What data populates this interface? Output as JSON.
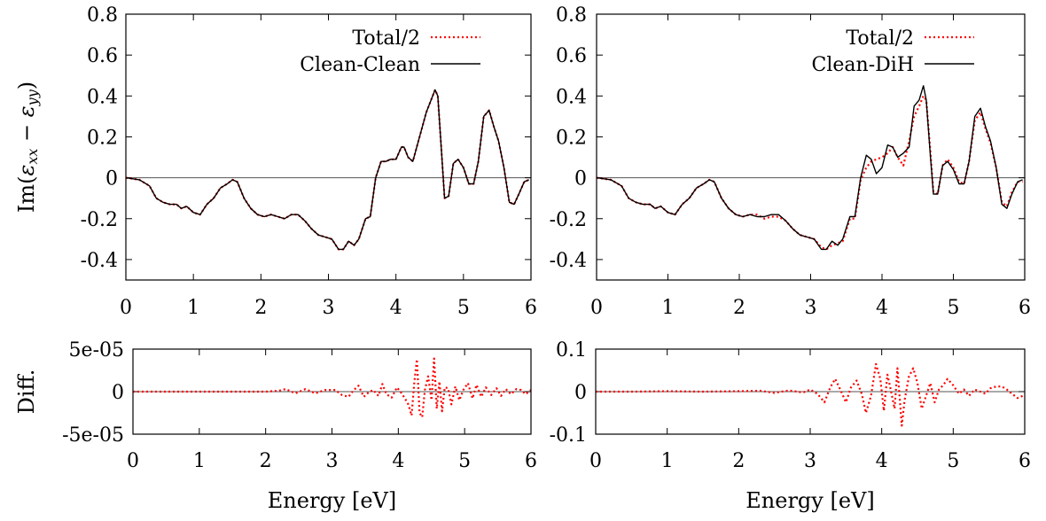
{
  "chart_data": [
    {
      "type": "line",
      "panel": "top-left",
      "xlim": [
        0,
        6
      ],
      "ylim": [
        -0.5,
        0.8
      ],
      "xticks": [
        0,
        1,
        2,
        3,
        4,
        5,
        6
      ],
      "yticks": [
        -0.4,
        -0.2,
        0,
        0.2,
        0.4,
        0.6,
        0.8
      ],
      "ytick_labels": [
        "-0.4",
        "-0.2",
        "0",
        "0.2",
        "0.4",
        "0.6",
        "0.8"
      ],
      "ylabel": "Im(ε_xx − ε_yy)",
      "xlabel": "",
      "legend": "top-right",
      "zero_line": true,
      "series": [
        {
          "name": "Total/2",
          "style": "dotted",
          "color": "#ff0000",
          "x": [
            0,
            0.2,
            0.35,
            0.45,
            0.55,
            0.65,
            0.75,
            0.82,
            0.9,
            1.0,
            1.1,
            1.2,
            1.3,
            1.4,
            1.5,
            1.58,
            1.65,
            1.75,
            1.85,
            1.95,
            2.05,
            2.15,
            2.25,
            2.35,
            2.45,
            2.55,
            2.65,
            2.75,
            2.85,
            2.95,
            3.05,
            3.15,
            3.22,
            3.3,
            3.38,
            3.45,
            3.55,
            3.62,
            3.7,
            3.78,
            3.85,
            3.92,
            4.0,
            4.08,
            4.12,
            4.18,
            4.25,
            4.35,
            4.45,
            4.52,
            4.58,
            4.62,
            4.68,
            4.72,
            4.78,
            4.85,
            4.92,
            5.0,
            5.08,
            5.15,
            5.22,
            5.3,
            5.38,
            5.45,
            5.52,
            5.6,
            5.68,
            5.75,
            5.82,
            5.9,
            5.97
          ],
          "y": [
            0,
            -0.01,
            -0.04,
            -0.1,
            -0.12,
            -0.13,
            -0.13,
            -0.15,
            -0.14,
            -0.17,
            -0.18,
            -0.13,
            -0.1,
            -0.05,
            -0.03,
            -0.01,
            -0.02,
            -0.1,
            -0.15,
            -0.18,
            -0.19,
            -0.18,
            -0.19,
            -0.2,
            -0.18,
            -0.18,
            -0.21,
            -0.25,
            -0.28,
            -0.29,
            -0.3,
            -0.35,
            -0.35,
            -0.31,
            -0.33,
            -0.3,
            -0.2,
            -0.19,
            0.0,
            0.08,
            0.08,
            0.09,
            0.09,
            0.15,
            0.15,
            0.1,
            0.08,
            0.2,
            0.32,
            0.38,
            0.43,
            0.4,
            0.1,
            -0.1,
            -0.09,
            0.07,
            0.09,
            0.05,
            -0.03,
            -0.03,
            0.08,
            0.3,
            0.33,
            0.25,
            0.18,
            0.05,
            -0.12,
            -0.13,
            -0.08,
            -0.02,
            -0.01
          ]
        },
        {
          "name": "Clean-Clean",
          "style": "solid",
          "color": "#000000",
          "x": [
            0,
            0.2,
            0.35,
            0.45,
            0.55,
            0.65,
            0.75,
            0.82,
            0.9,
            1.0,
            1.1,
            1.2,
            1.3,
            1.4,
            1.5,
            1.58,
            1.65,
            1.75,
            1.85,
            1.95,
            2.05,
            2.15,
            2.25,
            2.35,
            2.45,
            2.55,
            2.65,
            2.75,
            2.85,
            2.95,
            3.05,
            3.15,
            3.22,
            3.3,
            3.38,
            3.45,
            3.55,
            3.62,
            3.7,
            3.78,
            3.85,
            3.92,
            4.0,
            4.08,
            4.12,
            4.18,
            4.25,
            4.35,
            4.45,
            4.52,
            4.58,
            4.62,
            4.68,
            4.72,
            4.78,
            4.85,
            4.92,
            5.0,
            5.08,
            5.15,
            5.22,
            5.3,
            5.38,
            5.45,
            5.52,
            5.6,
            5.68,
            5.75,
            5.82,
            5.9,
            5.97
          ],
          "y": [
            0,
            -0.01,
            -0.04,
            -0.1,
            -0.12,
            -0.13,
            -0.13,
            -0.15,
            -0.14,
            -0.17,
            -0.18,
            -0.13,
            -0.1,
            -0.05,
            -0.03,
            -0.01,
            -0.02,
            -0.1,
            -0.15,
            -0.18,
            -0.19,
            -0.18,
            -0.19,
            -0.2,
            -0.18,
            -0.18,
            -0.21,
            -0.25,
            -0.28,
            -0.29,
            -0.3,
            -0.35,
            -0.35,
            -0.31,
            -0.33,
            -0.3,
            -0.2,
            -0.19,
            0.0,
            0.08,
            0.08,
            0.09,
            0.09,
            0.15,
            0.15,
            0.1,
            0.08,
            0.2,
            0.32,
            0.38,
            0.43,
            0.4,
            0.1,
            -0.1,
            -0.09,
            0.07,
            0.09,
            0.05,
            -0.03,
            -0.03,
            0.08,
            0.3,
            0.33,
            0.25,
            0.18,
            0.05,
            -0.12,
            -0.13,
            -0.08,
            -0.02,
            -0.01
          ]
        }
      ]
    },
    {
      "type": "line",
      "panel": "top-right",
      "xlim": [
        0,
        6
      ],
      "ylim": [
        -0.5,
        0.8
      ],
      "xticks": [
        0,
        1,
        2,
        3,
        4,
        5,
        6
      ],
      "yticks": [
        -0.4,
        -0.2,
        0,
        0.2,
        0.4,
        0.6,
        0.8
      ],
      "ytick_labels": [
        "-0.4",
        "-0.2",
        "0",
        "0.2",
        "0.4",
        "0.6",
        "0.8"
      ],
      "xlabel": "",
      "ylabel": "",
      "legend": "top-right",
      "zero_line": true,
      "series": [
        {
          "name": "Total/2",
          "style": "dotted",
          "color": "#ff0000",
          "x": [
            0,
            0.2,
            0.35,
            0.45,
            0.55,
            0.65,
            0.75,
            0.82,
            0.9,
            1.0,
            1.1,
            1.2,
            1.3,
            1.4,
            1.5,
            1.58,
            1.65,
            1.75,
            1.85,
            1.95,
            2.05,
            2.15,
            2.25,
            2.35,
            2.45,
            2.55,
            2.65,
            2.75,
            2.85,
            2.95,
            3.05,
            3.15,
            3.22,
            3.3,
            3.38,
            3.45,
            3.55,
            3.62,
            3.7,
            3.78,
            3.85,
            3.92,
            4.0,
            4.08,
            4.15,
            4.22,
            4.3,
            4.38,
            4.45,
            4.52,
            4.58,
            4.62,
            4.68,
            4.72,
            4.78,
            4.85,
            4.92,
            5.0,
            5.08,
            5.15,
            5.22,
            5.3,
            5.38,
            5.45,
            5.52,
            5.6,
            5.68,
            5.75,
            5.82,
            5.9,
            5.97
          ],
          "y": [
            0,
            -0.01,
            -0.04,
            -0.1,
            -0.12,
            -0.13,
            -0.13,
            -0.15,
            -0.14,
            -0.17,
            -0.18,
            -0.13,
            -0.1,
            -0.05,
            -0.03,
            -0.01,
            -0.02,
            -0.1,
            -0.15,
            -0.18,
            -0.19,
            -0.18,
            -0.18,
            -0.2,
            -0.19,
            -0.19,
            -0.21,
            -0.25,
            -0.28,
            -0.29,
            -0.3,
            -0.34,
            -0.35,
            -0.33,
            -0.32,
            -0.31,
            -0.2,
            -0.2,
            -0.01,
            0.05,
            0.08,
            0.09,
            0.1,
            0.12,
            0.15,
            0.1,
            0.06,
            0.18,
            0.3,
            0.35,
            0.4,
            0.38,
            0.12,
            -0.07,
            -0.08,
            0.06,
            0.09,
            0.05,
            -0.02,
            -0.03,
            0.08,
            0.28,
            0.32,
            0.24,
            0.17,
            0.05,
            -0.12,
            -0.14,
            -0.07,
            -0.02,
            -0.02
          ]
        },
        {
          "name": "Clean-DiH",
          "style": "solid",
          "color": "#000000",
          "x": [
            0,
            0.2,
            0.35,
            0.45,
            0.55,
            0.65,
            0.75,
            0.82,
            0.9,
            1.0,
            1.1,
            1.2,
            1.3,
            1.4,
            1.5,
            1.58,
            1.65,
            1.75,
            1.85,
            1.95,
            2.05,
            2.15,
            2.25,
            2.35,
            2.45,
            2.55,
            2.65,
            2.75,
            2.85,
            2.95,
            3.05,
            3.15,
            3.22,
            3.3,
            3.38,
            3.45,
            3.55,
            3.62,
            3.7,
            3.78,
            3.85,
            3.92,
            4.0,
            4.08,
            4.15,
            4.22,
            4.3,
            4.38,
            4.45,
            4.52,
            4.58,
            4.62,
            4.68,
            4.72,
            4.78,
            4.85,
            4.92,
            5.0,
            5.08,
            5.15,
            5.22,
            5.3,
            5.38,
            5.45,
            5.52,
            5.6,
            5.68,
            5.75,
            5.82,
            5.9,
            5.97
          ],
          "y": [
            0,
            -0.01,
            -0.04,
            -0.1,
            -0.12,
            -0.13,
            -0.13,
            -0.15,
            -0.14,
            -0.17,
            -0.18,
            -0.13,
            -0.1,
            -0.05,
            -0.03,
            -0.01,
            -0.02,
            -0.1,
            -0.15,
            -0.18,
            -0.19,
            -0.18,
            -0.19,
            -0.19,
            -0.18,
            -0.18,
            -0.21,
            -0.25,
            -0.28,
            -0.29,
            -0.3,
            -0.35,
            -0.35,
            -0.31,
            -0.33,
            -0.3,
            -0.19,
            -0.19,
            0.0,
            0.11,
            0.09,
            0.02,
            0.05,
            0.16,
            0.15,
            0.1,
            0.12,
            0.15,
            0.35,
            0.38,
            0.45,
            0.38,
            0.1,
            -0.08,
            -0.08,
            0.06,
            0.08,
            0.04,
            -0.03,
            -0.03,
            0.08,
            0.3,
            0.34,
            0.25,
            0.18,
            0.05,
            -0.13,
            -0.15,
            -0.08,
            -0.02,
            -0.01
          ]
        }
      ]
    },
    {
      "type": "line",
      "panel": "bottom-left",
      "xlim": [
        0,
        6
      ],
      "ylim": [
        -5e-05,
        5e-05
      ],
      "xticks": [
        0,
        1,
        2,
        3,
        4,
        5,
        6
      ],
      "yticks": [
        -5e-05,
        0,
        5e-05
      ],
      "ytick_labels": [
        "-5e-05",
        "0",
        "5e-05"
      ],
      "ylabel": "Diff.",
      "xlabel": "Energy [eV]",
      "zero_line": true,
      "series": [
        {
          "name": "",
          "style": "dotted",
          "color": "#ff0000",
          "x": [
            0,
            0.5,
            1.0,
            1.5,
            2.0,
            2.2,
            2.3,
            2.45,
            2.6,
            2.75,
            2.9,
            3.05,
            3.15,
            3.25,
            3.32,
            3.4,
            3.48,
            3.55,
            3.62,
            3.7,
            3.76,
            3.82,
            3.9,
            3.98,
            4.05,
            4.1,
            4.15,
            4.2,
            4.24,
            4.28,
            4.32,
            4.36,
            4.4,
            4.45,
            4.5,
            4.54,
            4.58,
            4.62,
            4.66,
            4.7,
            4.75,
            4.8,
            4.86,
            4.92,
            4.98,
            5.05,
            5.12,
            5.18,
            5.25,
            5.32,
            5.4,
            5.48,
            5.55,
            5.62,
            5.7,
            5.78,
            5.85,
            5.92,
            6.0
          ],
          "y": [
            0,
            0,
            0,
            0,
            0,
            1e-06,
            3e-06,
            -2e-06,
            3e-06,
            -2e-06,
            2e-06,
            2e-06,
            -4e-06,
            -6e-06,
            1e-06,
            7e-06,
            -6e-06,
            -1e-06,
            2e-06,
            -5e-06,
            9e-06,
            -3e-06,
            -7e-06,
            5e-06,
            -2e-06,
            -8e-06,
            -1.5e-05,
            -2.8e-05,
            1e-05,
            3.8e-05,
            -2.5e-05,
            -3e-05,
            2e-06,
            1.8e-05,
            -1e-05,
            3.9e-05,
            -2e-05,
            1.2e-05,
            -2.3e-05,
            5e-06,
            4e-06,
            -1.5e-05,
            6e-06,
            -1e-05,
            2e-06,
            1e-05,
            -8e-06,
            8e-06,
            -6e-06,
            5e-06,
            -4e-06,
            4e-06,
            -5e-06,
            3e-06,
            -3e-06,
            3e-06,
            2e-06,
            -3e-06,
            2e-06
          ]
        }
      ]
    },
    {
      "type": "line",
      "panel": "bottom-right",
      "xlim": [
        0,
        6
      ],
      "ylim": [
        -0.1,
        0.1
      ],
      "xticks": [
        0,
        1,
        2,
        3,
        4,
        5,
        6
      ],
      "yticks": [
        -0.1,
        0,
        0.1
      ],
      "ytick_labels": [
        "-0.1",
        "0",
        "0.1"
      ],
      "ylabel": "",
      "xlabel": "Energy [eV]",
      "zero_line": true,
      "series": [
        {
          "name": "",
          "style": "dotted",
          "color": "#ff0000",
          "x": [
            0,
            0.5,
            1.0,
            1.5,
            2.0,
            2.3,
            2.5,
            2.7,
            2.9,
            3.0,
            3.1,
            3.2,
            3.28,
            3.35,
            3.42,
            3.5,
            3.57,
            3.65,
            3.72,
            3.78,
            3.85,
            3.92,
            3.98,
            4.03,
            4.08,
            4.12,
            4.18,
            4.22,
            4.28,
            4.32,
            4.38,
            4.44,
            4.5,
            4.56,
            4.62,
            4.68,
            4.74,
            4.8,
            4.86,
            4.92,
            5.0,
            5.08,
            5.15,
            5.22,
            5.3,
            5.38,
            5.45,
            5.52,
            5.6,
            5.68,
            5.75,
            5.82,
            5.9,
            6.0
          ],
          "y": [
            0,
            0,
            0.001,
            0,
            0.001,
            0.002,
            -0.003,
            0.003,
            -0.002,
            0.005,
            -0.005,
            -0.025,
            0.01,
            0.03,
            0.005,
            -0.025,
            0.01,
            0.026,
            -0.005,
            -0.05,
            -0.01,
            0.065,
            0.03,
            -0.045,
            0.04,
            0.01,
            -0.04,
            0.055,
            -0.08,
            -0.02,
            0.035,
            0.055,
            0.02,
            -0.04,
            -0.01,
            0.02,
            -0.025,
            0.005,
            0.015,
            0.03,
            0.015,
            -0.005,
            0.005,
            -0.01,
            0.005,
            0.0,
            -0.005,
            0.008,
            0.012,
            0.012,
            0.005,
            -0.005,
            -0.015,
            -0.008
          ]
        }
      ]
    }
  ]
}
